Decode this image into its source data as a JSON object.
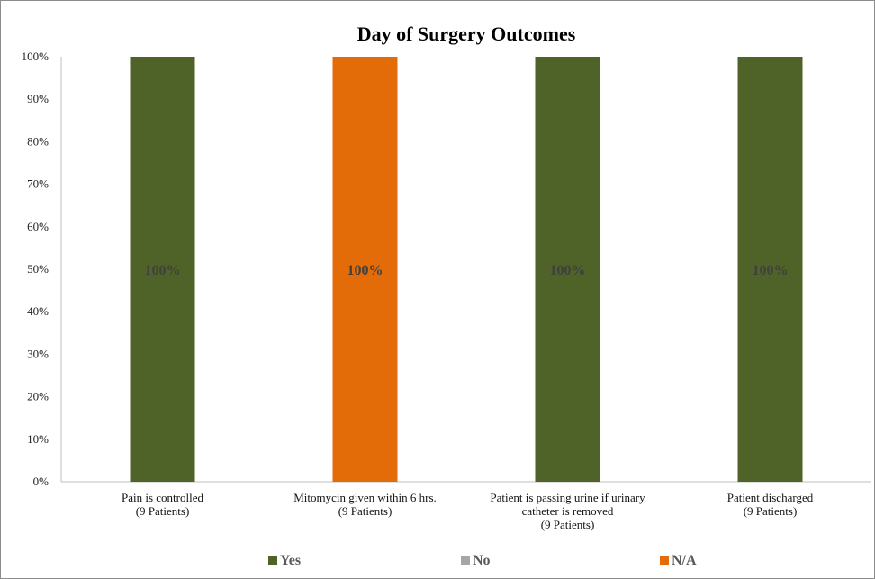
{
  "chart_data": {
    "type": "bar",
    "stacked": true,
    "title": "Day of Surgery Outcomes",
    "categories": [
      [
        "Pain is controlled",
        "(9 Patients)"
      ],
      [
        "Mitomycin given within 6 hrs.",
        "(9 Patients)"
      ],
      [
        "Patient is passing urine if urinary",
        "catheter is removed",
        "(9 Patients)"
      ],
      [
        "Patient discharged",
        "(9 Patients)"
      ]
    ],
    "series": [
      {
        "name": "Yes",
        "color": "#4f6228",
        "values": [
          100,
          0,
          100,
          100
        ]
      },
      {
        "name": "No",
        "color": "#a6a6a6",
        "values": [
          0,
          0,
          0,
          0
        ]
      },
      {
        "name": "N/A",
        "color": "#e36c09",
        "values": [
          0,
          100,
          0,
          0
        ]
      }
    ],
    "data_labels": [
      "100%",
      "100%",
      "100%",
      "100%"
    ],
    "ylim": [
      0,
      100
    ],
    "yticks": [
      "0%",
      "10%",
      "20%",
      "30%",
      "40%",
      "50%",
      "60%",
      "70%",
      "80%",
      "90%",
      "100%"
    ],
    "grid": false,
    "legend_position": "bottom"
  }
}
